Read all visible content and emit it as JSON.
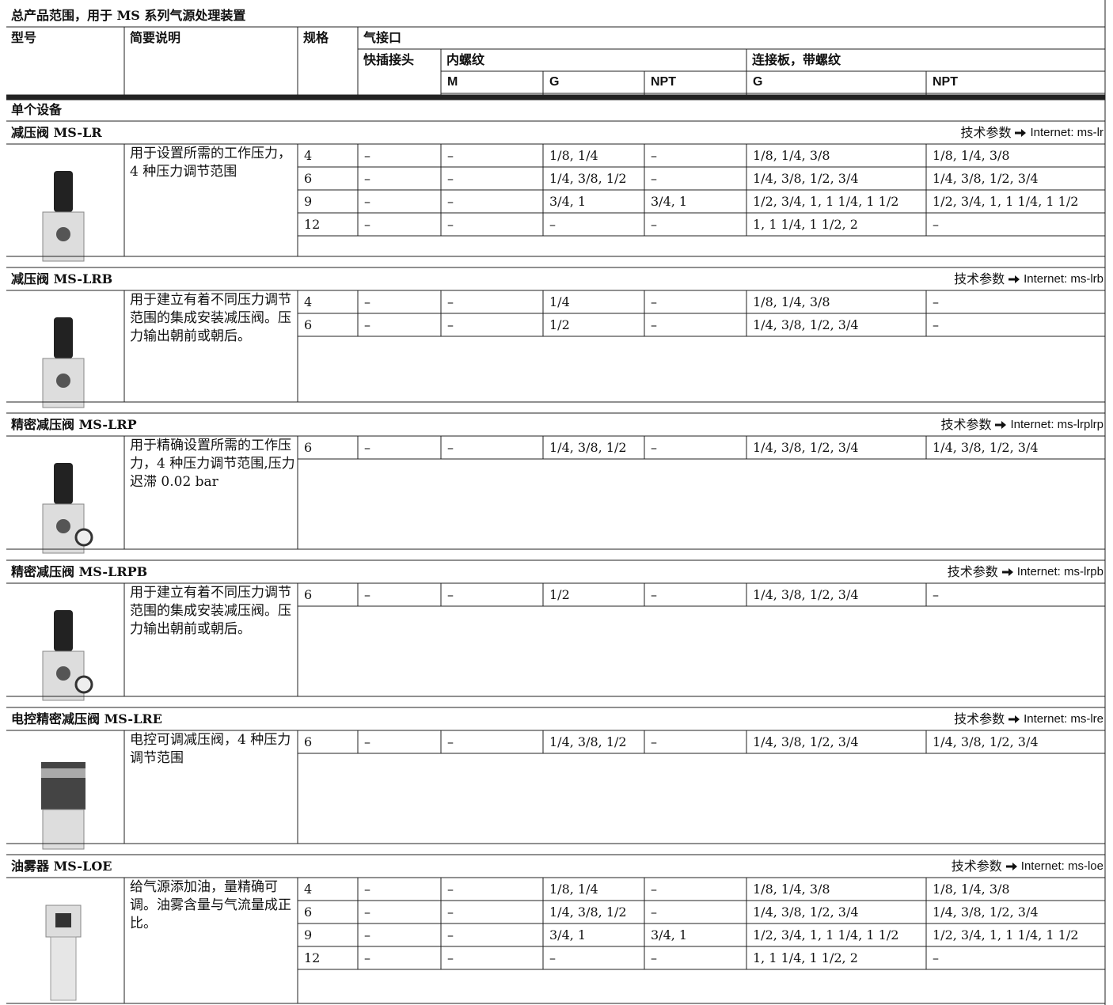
{
  "header": {
    "title": "总产品范围，用于 MS 系列气源处理装置",
    "columns": {
      "model": "型号",
      "description": "简要说明",
      "size": "规格",
      "port": "气接口",
      "quick": "快插接头",
      "female": "内螺纹",
      "plate": "连接板，带螺纹",
      "m": "M",
      "g1": "G",
      "npt1": "NPT",
      "g2": "G",
      "npt2": "NPT"
    }
  },
  "section": "单个设备",
  "products": [
    {
      "name": "减压阀 MS-LR",
      "link_label": "技术参数",
      "link": "Internet: ms-lr",
      "description": "用于设置所需的工作压力，4 种压力调节范围",
      "rows": [
        [
          "4",
          "–",
          "–",
          "1/8, 1/4",
          "–",
          "1/8, 1/4, 3/8",
          "1/8, 1/4, 3/8"
        ],
        [
          "6",
          "–",
          "–",
          "1/4, 3/8, 1/2",
          "–",
          "1/4, 3/8, 1/2, 3/4",
          "1/4, 3/8, 1/2, 3/4"
        ],
        [
          "9",
          "–",
          "–",
          "3/4, 1",
          "3/4, 1",
          "1/2, 3/4, 1, 1 1/4, 1 1/2",
          "1/2, 3/4, 1, 1 1/4, 1 1/2"
        ],
        [
          "12",
          "–",
          "–",
          "–",
          "–",
          "1, 1 1/4, 1 1/2, 2",
          "–"
        ]
      ]
    },
    {
      "name": "减压阀 MS-LRB",
      "link_label": "技术参数",
      "link": "Internet: ms-lrb",
      "description": "用于建立有着不同压力调节范围的集成安装减压阀。压力输出朝前或朝后。",
      "rows": [
        [
          "4",
          "–",
          "–",
          "1/4",
          "–",
          "1/8, 1/4, 3/8",
          "–"
        ],
        [
          "6",
          "–",
          "–",
          "1/2",
          "–",
          "1/4, 3/8, 1/2, 3/4",
          "–"
        ]
      ]
    },
    {
      "name": "精密减压阀 MS-LRP",
      "link_label": "技术参数",
      "link": "Internet: ms-lrplrp",
      "description": "用于精确设置所需的工作压力，4 种压力调节范围,压力迟滞 0.02 bar",
      "rows": [
        [
          "6",
          "–",
          "–",
          "1/4, 3/8, 1/2",
          "–",
          "1/4, 3/8, 1/2, 3/4",
          "1/4, 3/8, 1/2, 3/4"
        ]
      ]
    },
    {
      "name": "精密减压阀 MS-LRPB",
      "link_label": "技术参数",
      "link": "Internet: ms-lrpb",
      "description": "用于建立有着不同压力调节范围的集成安装减压阀。压力输出朝前或朝后。",
      "rows": [
        [
          "6",
          "–",
          "–",
          "1/2",
          "–",
          "1/4, 3/8, 1/2, 3/4",
          "–"
        ]
      ]
    },
    {
      "name": "电控精密减压阀 MS-LRE",
      "link_label": "技术参数",
      "link": "Internet: ms-lre",
      "description": "电控可调减压阀，4 种压力调节范围",
      "rows": [
        [
          "6",
          "–",
          "–",
          "1/4, 3/8, 1/2",
          "–",
          "1/4, 3/8, 1/2, 3/4",
          "1/4, 3/8, 1/2, 3/4"
        ]
      ]
    },
    {
      "name": "油雾器 MS-LOE",
      "link_label": "技术参数",
      "link": "Internet: ms-loe",
      "description": "给气源添加油，量精确可调。油雾含量与气流量成正比。",
      "rows": [
        [
          "4",
          "–",
          "–",
          "1/8, 1/4",
          "–",
          "1/8, 1/4, 3/8",
          "1/8, 1/4, 3/8"
        ],
        [
          "6",
          "–",
          "–",
          "1/4, 3/8, 1/2",
          "–",
          "1/4, 3/8, 1/2, 3/4",
          "1/4, 3/8, 1/2, 3/4"
        ],
        [
          "9",
          "–",
          "–",
          "3/4, 1",
          "3/4, 1",
          "1/2, 3/4, 1, 1 1/4, 1 1/2",
          "1/2, 3/4, 1, 1 1/4, 1 1/2"
        ],
        [
          "12",
          "–",
          "–",
          "–",
          "–",
          "1, 1 1/4, 1 1/2, 2",
          "–"
        ]
      ]
    }
  ]
}
